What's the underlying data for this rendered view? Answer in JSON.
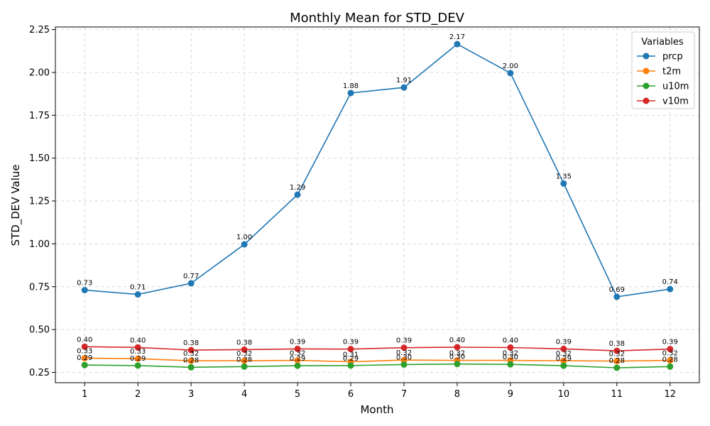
{
  "chart_data": {
    "type": "line",
    "title": "Monthly Mean for STD_DEV",
    "xlabel": "Month",
    "ylabel": "STD_DEV Value",
    "x": [
      1,
      2,
      3,
      4,
      5,
      6,
      7,
      8,
      9,
      10,
      11,
      12
    ],
    "xticks": [
      "1",
      "2",
      "3",
      "4",
      "5",
      "6",
      "7",
      "8",
      "9",
      "10",
      "11",
      "12"
    ],
    "xlim": [
      0.45,
      12.55
    ],
    "ylim": [
      0.19,
      2.265
    ],
    "yticks": [
      0.25,
      0.5,
      0.75,
      1.0,
      1.25,
      1.5,
      1.75,
      2.0,
      2.25
    ],
    "ytick_labels": [
      "0.25",
      "0.50",
      "0.75",
      "1.00",
      "1.25",
      "1.50",
      "1.75",
      "2.00",
      "2.25"
    ],
    "grid": true,
    "legend": {
      "title": "Variables",
      "placement": "top-right"
    },
    "series": [
      {
        "name": "prcp",
        "color": "#1f77b4",
        "values": [
          0.73,
          0.705,
          0.77,
          0.997,
          1.287,
          1.88,
          1.912,
          2.165,
          1.996,
          1.352,
          0.691,
          0.736
        ],
        "labels": [
          "0.73",
          "0.71",
          "0.77",
          "1.00",
          "1.29",
          "1.88",
          "1.91",
          "2.17",
          "2.00",
          "1.35",
          "0.69",
          "0.74"
        ]
      },
      {
        "name": "t2m",
        "color": "#ff7f0e",
        "values": [
          0.333,
          0.33,
          0.318,
          0.318,
          0.32,
          0.312,
          0.322,
          0.32,
          0.32,
          0.318,
          0.316,
          0.32
        ],
        "labels": [
          "0.33",
          "0.33",
          "0.32",
          "0.32",
          "0.32",
          "0.31",
          "0.32",
          "0.32",
          "0.32",
          "0.32",
          "0.32",
          "0.32"
        ]
      },
      {
        "name": "u10m",
        "color": "#2ca02c",
        "values": [
          0.293,
          0.29,
          0.28,
          0.284,
          0.289,
          0.29,
          0.296,
          0.299,
          0.297,
          0.289,
          0.277,
          0.284
        ],
        "labels": [
          "0.29",
          "0.29",
          "0.28",
          "0.28",
          "0.29",
          "0.29",
          "0.30",
          "0.30",
          "0.30",
          "0.29",
          "0.28",
          "0.28"
        ]
      },
      {
        "name": "v10m",
        "color": "#d62728",
        "values": [
          0.4,
          0.396,
          0.38,
          0.383,
          0.387,
          0.386,
          0.394,
          0.397,
          0.395,
          0.387,
          0.376,
          0.386
        ],
        "labels": [
          "0.40",
          "0.40",
          "0.38",
          "0.38",
          "0.39",
          "0.39",
          "0.39",
          "0.40",
          "0.40",
          "0.39",
          "0.38",
          "0.39"
        ]
      }
    ]
  }
}
